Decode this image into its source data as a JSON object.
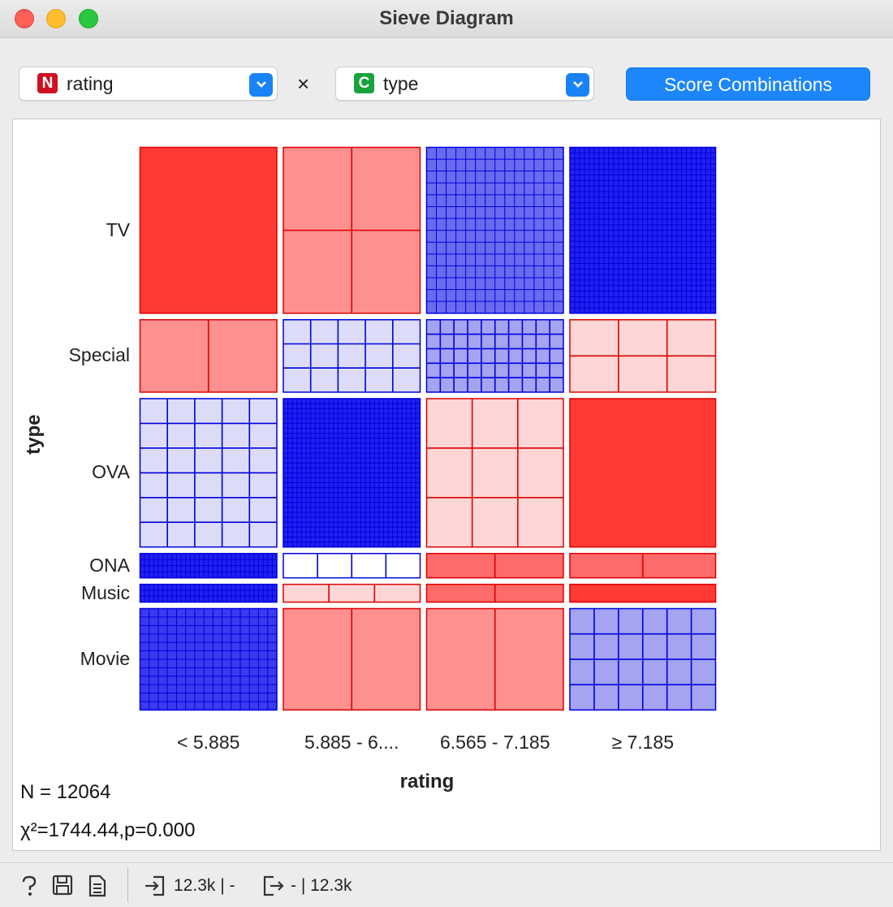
{
  "window": {
    "title": "Sieve Diagram"
  },
  "controls": {
    "row_var": {
      "badge": "N",
      "badge_color": "#cf1020",
      "label": "rating"
    },
    "times": "×",
    "col_var": {
      "badge": "C",
      "badge_color": "#16a33b",
      "label": "type"
    },
    "dropdown_icon": "chevron-down-icon",
    "score_button": "Score Combinations"
  },
  "chart_data": {
    "type": "heatmap",
    "subtype": "sieve",
    "x_title": "rating",
    "y_title": "type",
    "x_categories": [
      "< 5.885",
      "5.885 - 6....",
      "6.565 - 7.185",
      "≥ 7.185"
    ],
    "y_categories": [
      "TV",
      "Special",
      "OVA",
      "ONA",
      "Music",
      "Movie"
    ],
    "column_share": [
      0.246,
      0.246,
      0.246,
      0.262
    ],
    "row_share": [
      0.305,
      0.134,
      0.273,
      0.046,
      0.034,
      0.187
    ],
    "cells": [
      [
        {
          "dir": "neg",
          "level": 5,
          "cols": 1,
          "rows": 1
        },
        {
          "dir": "neg",
          "level": 3,
          "cols": 2,
          "rows": 2
        },
        {
          "dir": "pos",
          "level": 3,
          "cols": 14,
          "rows": 14
        },
        {
          "dir": "pos",
          "level": 5,
          "cols": 30,
          "rows": 30
        }
      ],
      [
        {
          "dir": "neg",
          "level": 3,
          "cols": 2,
          "rows": 1
        },
        {
          "dir": "pos",
          "level": 1,
          "cols": 5,
          "rows": 3
        },
        {
          "dir": "pos",
          "level": 2,
          "cols": 10,
          "rows": 5
        },
        {
          "dir": "neg",
          "level": 1,
          "cols": 3,
          "rows": 2
        }
      ],
      [
        {
          "dir": "pos",
          "level": 1,
          "cols": 5,
          "rows": 6
        },
        {
          "dir": "pos",
          "level": 5,
          "cols": 30,
          "rows": 30
        },
        {
          "dir": "neg",
          "level": 1,
          "cols": 3,
          "rows": 3
        },
        {
          "dir": "neg",
          "level": 5,
          "cols": 1,
          "rows": 1
        }
      ],
      [
        {
          "dir": "pos",
          "level": 5,
          "cols": 30,
          "rows": 4
        },
        {
          "dir": "pos",
          "level": 0,
          "cols": 4,
          "rows": 1
        },
        {
          "dir": "neg",
          "level": 4,
          "cols": 2,
          "rows": 1
        },
        {
          "dir": "neg",
          "level": 4,
          "cols": 2,
          "rows": 1
        }
      ],
      [
        {
          "dir": "pos",
          "level": 5,
          "cols": 30,
          "rows": 3
        },
        {
          "dir": "neg",
          "level": 1,
          "cols": 3,
          "rows": 1
        },
        {
          "dir": "neg",
          "level": 4,
          "cols": 2,
          "rows": 1
        },
        {
          "dir": "neg",
          "level": 5,
          "cols": 1,
          "rows": 1
        }
      ],
      [
        {
          "dir": "pos",
          "level": 4,
          "cols": 15,
          "rows": 12
        },
        {
          "dir": "neg",
          "level": 3,
          "cols": 2,
          "rows": 1
        },
        {
          "dir": "neg",
          "level": 3,
          "cols": 2,
          "rows": 1
        },
        {
          "dir": "pos",
          "level": 2,
          "cols": 6,
          "rows": 4
        }
      ]
    ]
  },
  "stats": {
    "n": "N = 12064",
    "chi": "χ²=1744.44,p=0.000"
  },
  "statusbar": {
    "help_icon": "help-icon",
    "save_icon": "save-icon",
    "report_icon": "report-icon",
    "input_icon": "input-icon",
    "input_text": "12.3k | -",
    "output_icon": "output-icon",
    "output_text": "- | 12.3k"
  }
}
